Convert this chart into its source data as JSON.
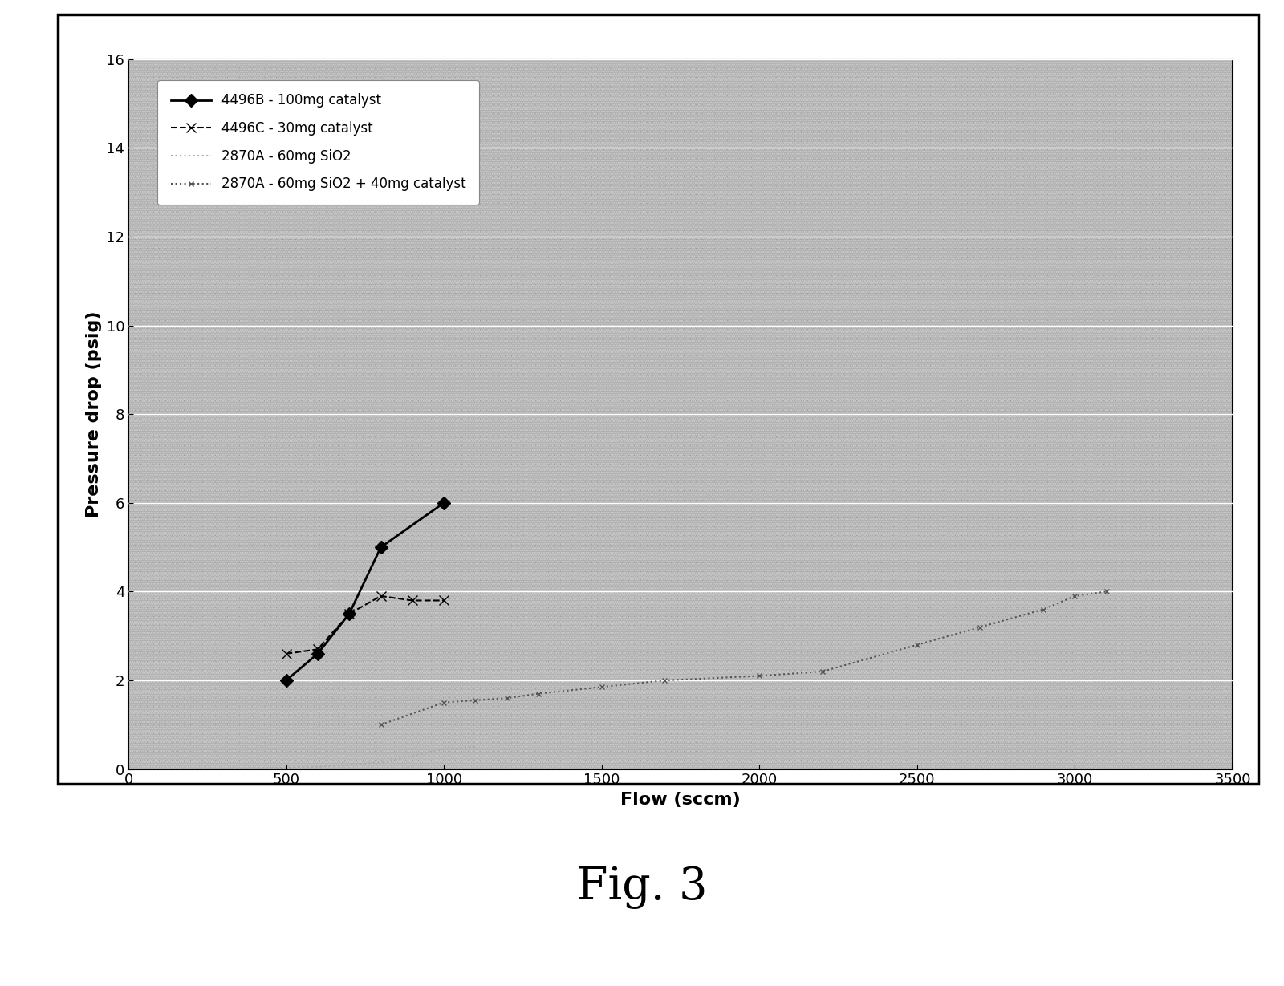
{
  "title": "Fig. 3",
  "xlabel": "Flow (sccm)",
  "ylabel": "Pressure drop (psig)",
  "xlim": [
    0,
    3500
  ],
  "ylim": [
    0,
    16
  ],
  "xticks": [
    0,
    500,
    1000,
    1500,
    2000,
    2500,
    3000,
    3500
  ],
  "yticks": [
    0,
    2,
    4,
    6,
    8,
    10,
    12,
    14,
    16
  ],
  "fig_bg": "#ffffff",
  "plot_bg": "#b0b0b0",
  "series": [
    {
      "label": "4496B - 100mg catalyst",
      "x": [
        500,
        600,
        700,
        800,
        1000
      ],
      "y": [
        2.0,
        2.6,
        3.5,
        5.0,
        6.0
      ],
      "color": "#000000",
      "linestyle": "solid",
      "linewidth": 2.0,
      "marker": "D",
      "markersize": 8,
      "markerfacecolor": "#000000"
    },
    {
      "label": "4496C - 30mg catalyst",
      "x": [
        500,
        600,
        700,
        800,
        900,
        1000
      ],
      "y": [
        2.6,
        2.7,
        3.5,
        3.9,
        3.8,
        3.8
      ],
      "color": "#000000",
      "linestyle": "--",
      "linewidth": 1.5,
      "marker": "x",
      "markersize": 8,
      "markerfacecolor": "#000000"
    },
    {
      "label": "2870A - 60mg SiO2",
      "x": [
        200,
        400,
        600,
        800,
        1000,
        1100
      ],
      "y": [
        0.0,
        0.02,
        0.05,
        0.15,
        0.45,
        0.5
      ],
      "color": "#aaaaaa",
      "linestyle": "dotted",
      "linewidth": 1.5,
      "marker": null,
      "markersize": 0,
      "markerfacecolor": "#aaaaaa"
    },
    {
      "label": "2870A - 60mg SiO2 + 40mg catalyst",
      "x": [
        800,
        1000,
        1100,
        1200,
        1300,
        1500,
        1700,
        2000,
        2200,
        2500,
        2700,
        2900,
        3000,
        3100
      ],
      "y": [
        1.0,
        1.5,
        1.55,
        1.6,
        1.7,
        1.85,
        2.0,
        2.1,
        2.2,
        2.8,
        3.2,
        3.6,
        3.9,
        4.0
      ],
      "color": "#555555",
      "linestyle": "dotted",
      "linewidth": 1.5,
      "marker": "x",
      "markersize": 5,
      "markerfacecolor": "#555555"
    }
  ]
}
